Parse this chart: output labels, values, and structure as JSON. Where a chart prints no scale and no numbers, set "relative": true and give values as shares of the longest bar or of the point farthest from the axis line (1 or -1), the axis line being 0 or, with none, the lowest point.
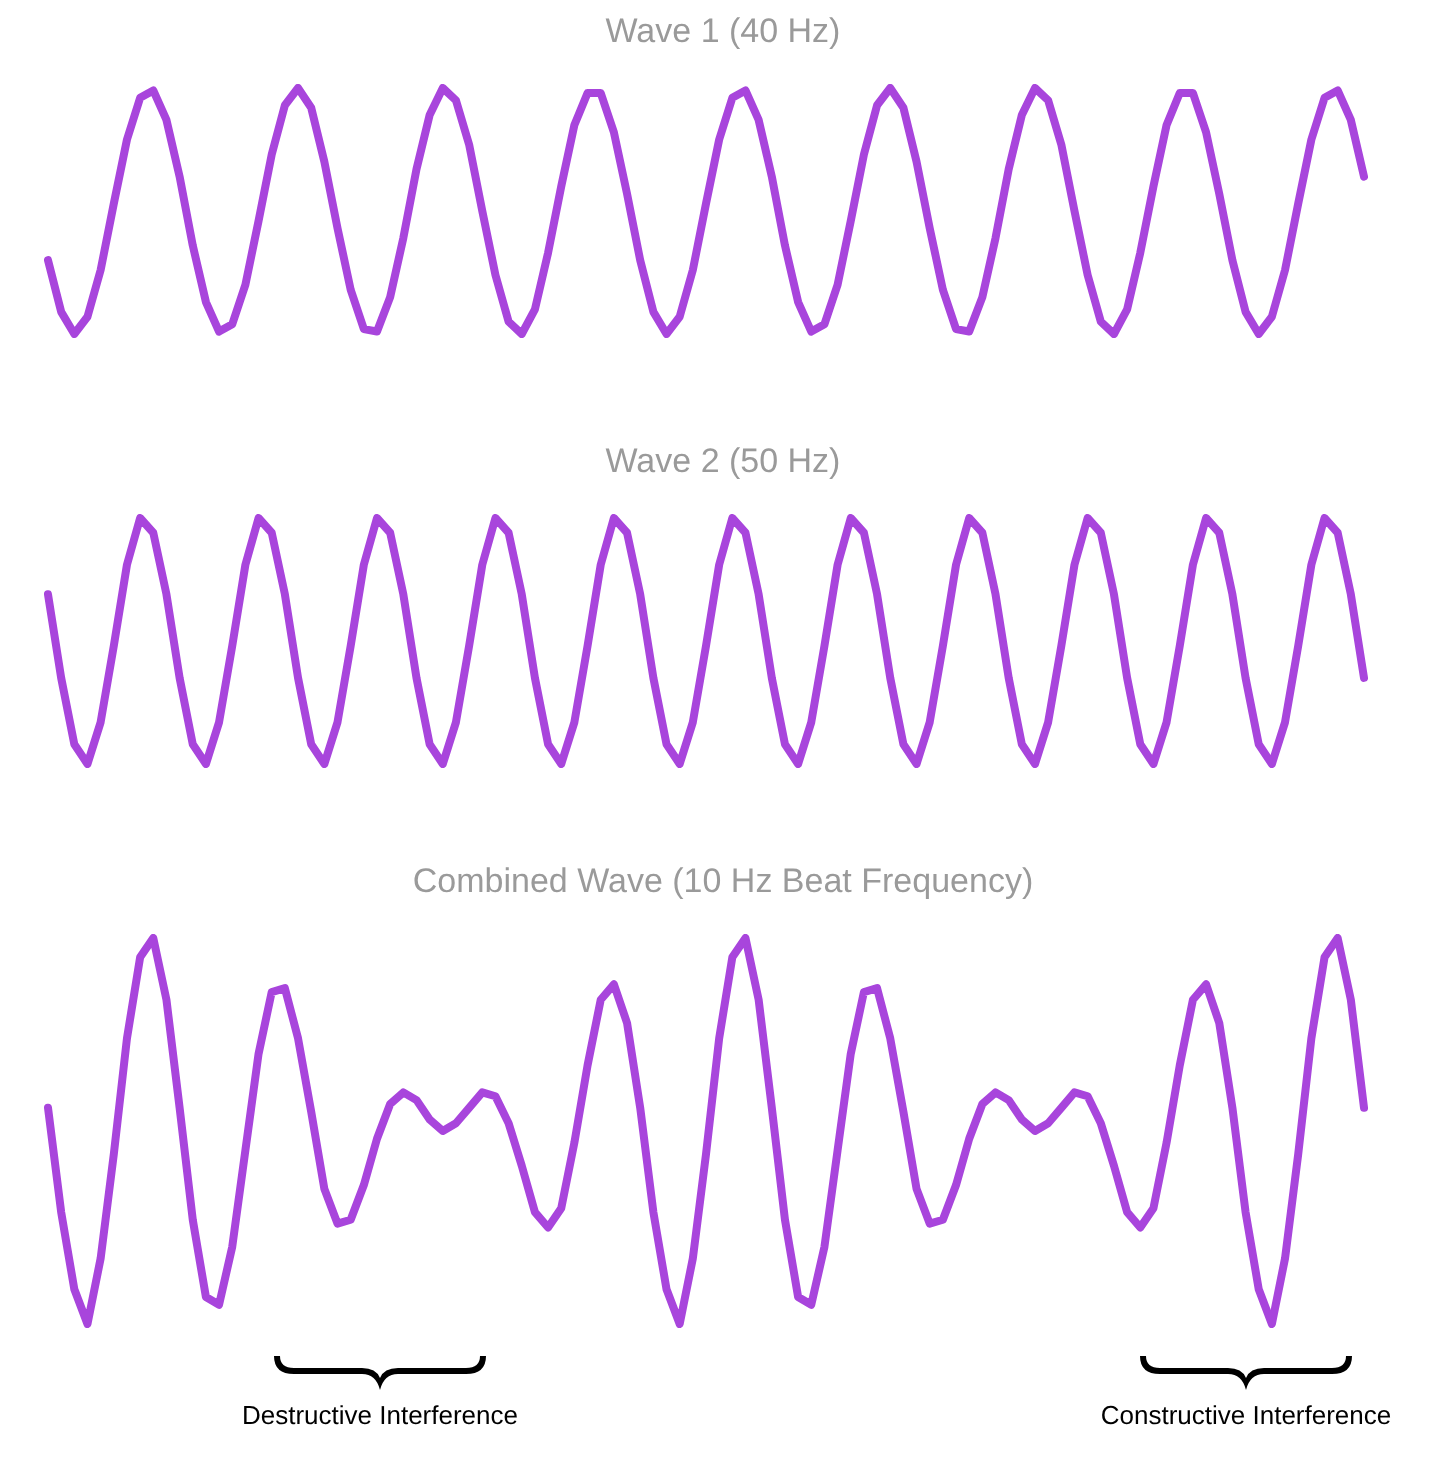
{
  "chart_data": [
    {
      "type": "line",
      "title": "Wave 1 (40 Hz)",
      "relative": true,
      "marker": "none",
      "color": "#a845dc",
      "categories": [
        null,
        null,
        null,
        null,
        null,
        null,
        null,
        null,
        null,
        null,
        null,
        null,
        null,
        null,
        null,
        null,
        null,
        null,
        null,
        null,
        null,
        null,
        null,
        null,
        null,
        null,
        null,
        null,
        null,
        null,
        null,
        null,
        null,
        null,
        null,
        null,
        null,
        null,
        null,
        null,
        null,
        null,
        null,
        null,
        null,
        null,
        null,
        null,
        null,
        null,
        null,
        null,
        null,
        null,
        null,
        null,
        null,
        null,
        null,
        null,
        null,
        null,
        null,
        null,
        null,
        null,
        null,
        null,
        null,
        null,
        null,
        null,
        null,
        null,
        null,
        null,
        null,
        null,
        null,
        null,
        null,
        null,
        null,
        null,
        null,
        null,
        null,
        null,
        null,
        null,
        null,
        null,
        null,
        null,
        null,
        null,
        null,
        null,
        null,
        null,
        null
      ],
      "values": [
        0.3,
        0.09,
        0,
        0.07,
        0.26,
        0.53,
        0.79,
        0.96,
        0.99,
        0.87,
        0.64,
        0.36,
        0.13,
        0.01,
        0.04,
        0.2,
        0.46,
        0.73,
        0.93,
        1,
        0.92,
        0.7,
        0.43,
        0.18,
        0.02,
        0.01,
        0.15,
        0.39,
        0.67,
        0.89,
        1,
        0.95,
        0.77,
        0.5,
        0.24,
        0.05,
        0,
        0.1,
        0.33,
        0.6,
        0.85,
        0.98,
        0.98,
        0.82,
        0.57,
        0.3,
        0.09,
        0,
        0.07,
        0.26,
        0.53,
        0.79,
        0.96,
        0.99,
        0.87,
        0.64,
        0.36,
        0.13,
        0.01,
        0.04,
        0.2,
        0.46,
        0.73,
        0.93,
        1,
        0.92,
        0.7,
        0.43,
        0.18,
        0.02,
        0.01,
        0.15,
        0.39,
        0.67,
        0.89,
        1,
        0.95,
        0.77,
        0.5,
        0.24,
        0.05,
        0,
        0.1,
        0.33,
        0.6,
        0.85,
        0.98,
        0.98,
        0.82,
        0.57,
        0.3,
        0.09,
        0,
        0.07,
        0.26,
        0.53,
        0.79,
        0.96,
        0.99,
        0.87,
        0.64
      ]
    },
    {
      "type": "line",
      "title": "Wave 2 (50 Hz)",
      "relative": true,
      "marker": "none",
      "color": "#a845dc",
      "categories": [
        null,
        null,
        null,
        null,
        null,
        null,
        null,
        null,
        null,
        null,
        null,
        null,
        null,
        null,
        null,
        null,
        null,
        null,
        null,
        null,
        null,
        null,
        null,
        null,
        null,
        null,
        null,
        null,
        null,
        null,
        null,
        null,
        null,
        null,
        null,
        null,
        null,
        null,
        null,
        null,
        null,
        null,
        null,
        null,
        null,
        null,
        null,
        null,
        null,
        null,
        null,
        null,
        null,
        null,
        null,
        null,
        null,
        null,
        null,
        null,
        null,
        null,
        null,
        null,
        null,
        null,
        null,
        null,
        null,
        null,
        null,
        null,
        null,
        null,
        null,
        null,
        null,
        null,
        null,
        null,
        null,
        null,
        null,
        null,
        null,
        null,
        null,
        null,
        null,
        null,
        null,
        null,
        null,
        null,
        null,
        null,
        null,
        null,
        null,
        null,
        null
      ],
      "values": [
        0.69,
        0.35,
        0.08,
        0,
        0.17,
        0.48,
        0.81,
        1,
        0.94,
        0.69,
        0.35,
        0.08,
        0,
        0.17,
        0.48,
        0.81,
        1,
        0.94,
        0.69,
        0.35,
        0.08,
        0,
        0.17,
        0.48,
        0.81,
        1,
        0.94,
        0.69,
        0.35,
        0.08,
        0,
        0.17,
        0.48,
        0.81,
        1,
        0.94,
        0.69,
        0.35,
        0.08,
        0,
        0.17,
        0.48,
        0.81,
        1,
        0.94,
        0.69,
        0.35,
        0.08,
        0,
        0.17,
        0.48,
        0.81,
        1,
        0.94,
        0.69,
        0.35,
        0.08,
        0,
        0.17,
        0.48,
        0.81,
        1,
        0.94,
        0.69,
        0.35,
        0.08,
        0,
        0.17,
        0.48,
        0.81,
        1,
        0.94,
        0.69,
        0.35,
        0.08,
        0,
        0.17,
        0.48,
        0.81,
        1,
        0.94,
        0.69,
        0.35,
        0.08,
        0,
        0.17,
        0.48,
        0.81,
        1,
        0.94,
        0.69,
        0.35,
        0.08,
        0,
        0.17,
        0.48,
        0.81,
        1,
        0.94,
        0.69,
        0.35
      ]
    },
    {
      "type": "line",
      "title": "Combined Wave (10 Hz Beat Frequency)",
      "relative": true,
      "marker": "none",
      "color": "#a845dc",
      "categories": [
        null,
        null,
        null,
        null,
        null,
        null,
        null,
        null,
        null,
        null,
        null,
        null,
        null,
        null,
        null,
        null,
        null,
        null,
        null,
        null,
        null,
        null,
        null,
        null,
        null,
        null,
        null,
        null,
        null,
        null,
        null,
        null,
        null,
        null,
        null,
        null,
        null,
        null,
        null,
        null,
        null,
        null,
        null,
        null,
        null,
        null,
        null,
        null,
        null,
        null,
        null,
        null,
        null,
        null,
        null,
        null,
        null,
        null,
        null,
        null,
        null,
        null,
        null,
        null,
        null,
        null,
        null,
        null,
        null,
        null,
        null,
        null,
        null,
        null,
        null,
        null,
        null,
        null,
        null,
        null,
        null,
        null,
        null,
        null,
        null,
        null,
        null,
        null,
        null,
        null,
        null,
        null,
        null,
        null,
        null,
        null,
        null,
        null,
        null,
        null,
        null
      ],
      "values": [
        0.56,
        0.29,
        0.09,
        0,
        0.17,
        0.44,
        0.74,
        0.95,
        1,
        0.84,
        0.56,
        0.27,
        0.07,
        0.05,
        0.2,
        0.45,
        0.7,
        0.86,
        0.87,
        0.74,
        0.55,
        0.35,
        0.26,
        0.27,
        0.36,
        0.48,
        0.57,
        0.6,
        0.58,
        0.53,
        0.5,
        0.52,
        0.56,
        0.6,
        0.59,
        0.52,
        0.41,
        0.29,
        0.25,
        0.3,
        0.47,
        0.67,
        0.84,
        0.88,
        0.78,
        0.56,
        0.29,
        0.09,
        0,
        0.17,
        0.44,
        0.74,
        0.95,
        1,
        0.84,
        0.56,
        0.27,
        0.07,
        0.05,
        0.2,
        0.45,
        0.7,
        0.86,
        0.87,
        0.74,
        0.55,
        0.35,
        0.26,
        0.27,
        0.36,
        0.48,
        0.57,
        0.6,
        0.58,
        0.53,
        0.5,
        0.52,
        0.56,
        0.6,
        0.59,
        0.52,
        0.41,
        0.29,
        0.25,
        0.3,
        0.47,
        0.67,
        0.84,
        0.88,
        0.78,
        0.56,
        0.29,
        0.09,
        0,
        0.17,
        0.44,
        0.74,
        0.95,
        1,
        0.84,
        0.56
      ],
      "annotations": [
        "Destructive Interference",
        "Constructive Interference"
      ]
    }
  ]
}
